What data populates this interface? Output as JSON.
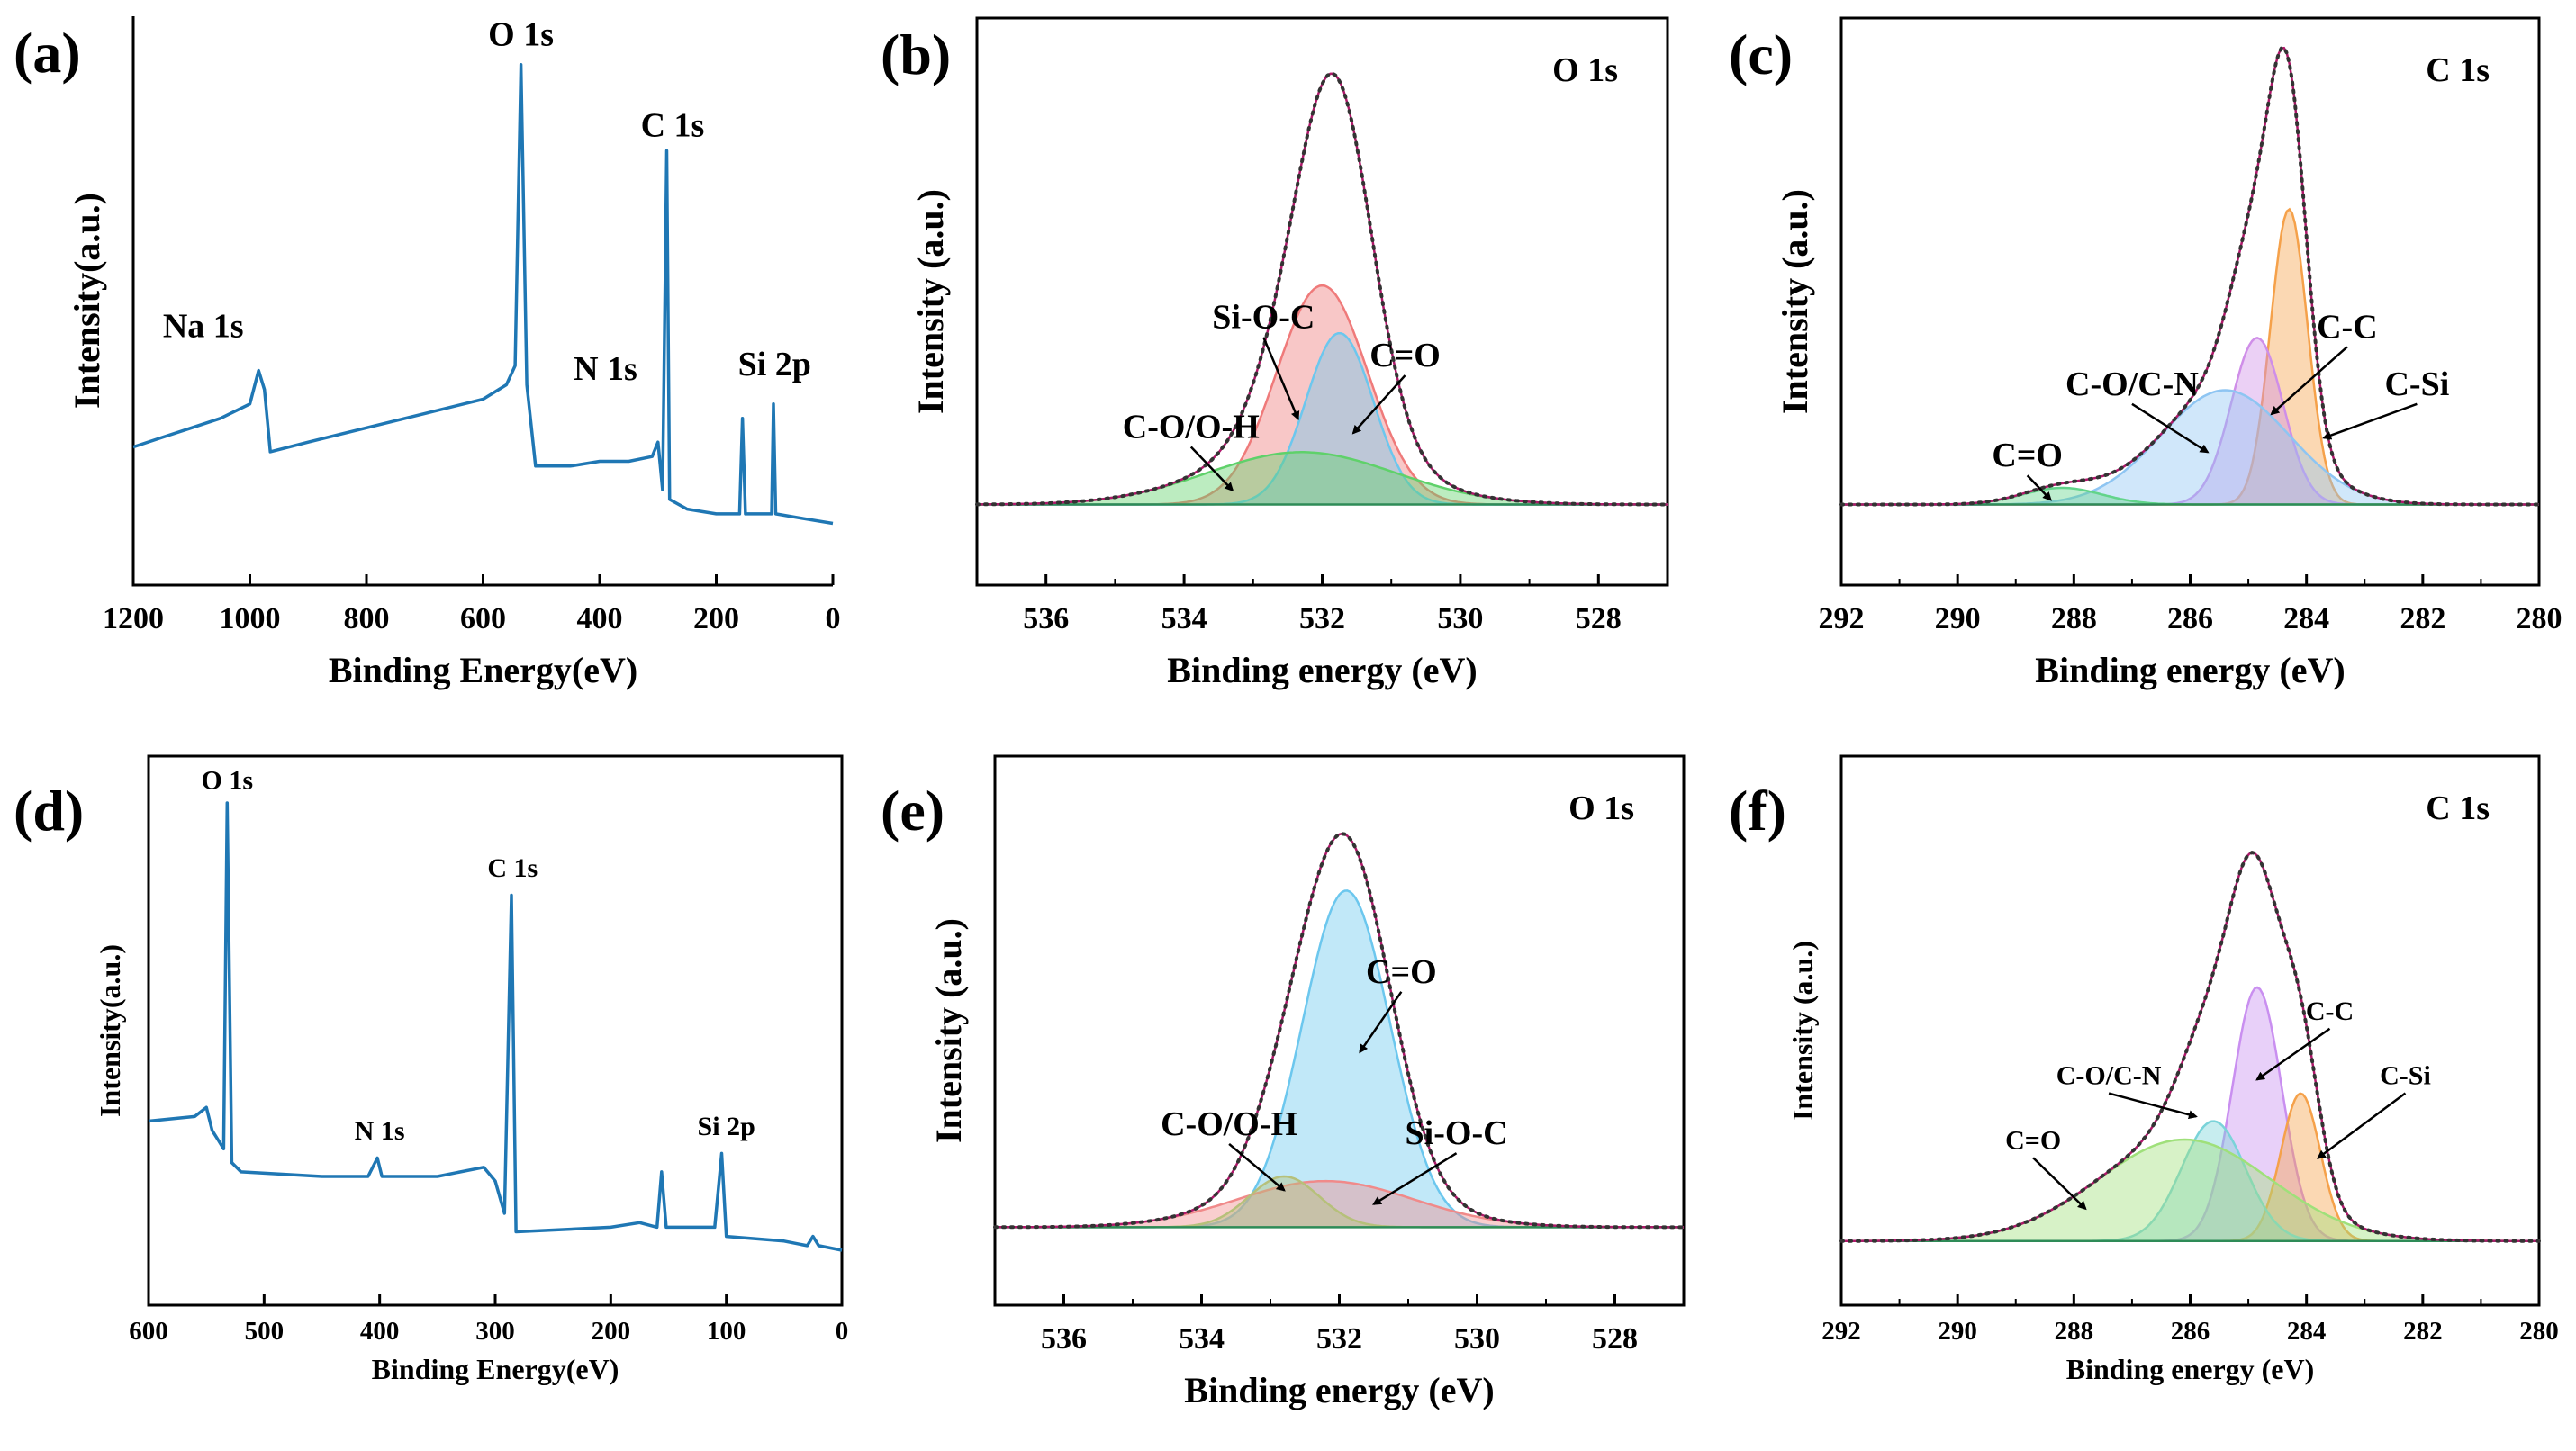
{
  "chart_data": [
    {
      "id": "a",
      "panel_label": "(a)",
      "type": "line",
      "xlabel": "Binding Energy(eV)",
      "ylabel": "Intensity(a.u.)",
      "xlim": [
        1200,
        0
      ],
      "ylim": [
        0,
        100
      ],
      "reversed_x": true,
      "xticks": [
        1200,
        1000,
        800,
        600,
        400,
        200,
        0
      ],
      "series": [
        {
          "name": "Survey spectrum",
          "color": "#1f77b4",
          "points": [
            [
              1200,
              17
            ],
            [
              1150,
              19
            ],
            [
              1100,
              21
            ],
            [
              1050,
              23
            ],
            [
              1000,
              26
            ],
            [
              985,
              33
            ],
            [
              975,
              29
            ],
            [
              965,
              16
            ],
            [
              900,
              18
            ],
            [
              800,
              21
            ],
            [
              700,
              24
            ],
            [
              600,
              27
            ],
            [
              560,
              30
            ],
            [
              545,
              34
            ],
            [
              535,
              97
            ],
            [
              525,
              30
            ],
            [
              510,
              13
            ],
            [
              450,
              13
            ],
            [
              400,
              14
            ],
            [
              350,
              14
            ],
            [
              310,
              15
            ],
            [
              300,
              18
            ],
            [
              292,
              8
            ],
            [
              285,
              79
            ],
            [
              280,
              6
            ],
            [
              250,
              4
            ],
            [
              200,
              3
            ],
            [
              160,
              3
            ],
            [
              155,
              23
            ],
            [
              150,
              3
            ],
            [
              105,
              3
            ],
            [
              102,
              26
            ],
            [
              98,
              3
            ],
            [
              50,
              2
            ],
            [
              0,
              1
            ]
          ]
        }
      ],
      "annotations": [
        {
          "text": "Na 1s",
          "x": 1080,
          "y": 40
        },
        {
          "text": "O 1s",
          "x": 535,
          "y": 101
        },
        {
          "text": "C 1s",
          "x": 275,
          "y": 82
        },
        {
          "text": "N 1s",
          "x": 390,
          "y": 31
        },
        {
          "text": "Si 2p",
          "x": 100,
          "y": 32
        }
      ]
    },
    {
      "id": "b",
      "panel_label": "(b)",
      "type": "area",
      "title": "O 1s",
      "xlabel": "Binding energy (eV)",
      "ylabel": "Intensity (a.u.)",
      "xlim": [
        537,
        527
      ],
      "ylim": [
        0,
        100
      ],
      "reversed_x": true,
      "xticks": [
        536,
        534,
        532,
        530,
        528
      ],
      "background": 5,
      "series": [
        {
          "name": "Si-O-C",
          "center": 532.0,
          "fwhm": 1.55,
          "amp": 46,
          "color": "#ef7a7a"
        },
        {
          "name": "C=O",
          "center": 531.75,
          "fwhm": 1.15,
          "amp": 36,
          "color": "#6cc7ee"
        },
        {
          "name": "C-O/O-H",
          "center": 532.3,
          "fwhm": 3.2,
          "amp": 11,
          "color": "#5fd16a"
        }
      ],
      "envelope": {
        "name": "Fitted envelope",
        "color": "#b0186b"
      },
      "annotations": [
        {
          "text": "Si-O-C",
          "x": 532.85,
          "y": 42,
          "arrow_to": [
            532.35,
            23
          ]
        },
        {
          "text": "C=O",
          "x": 530.8,
          "y": 34,
          "arrow_to": [
            531.55,
            20
          ]
        },
        {
          "text": "C-O/O-H",
          "x": 533.9,
          "y": 19,
          "arrow_to": [
            533.3,
            8
          ]
        }
      ]
    },
    {
      "id": "c",
      "panel_label": "(c)",
      "type": "area",
      "title": "C 1s",
      "xlabel": "Binding energy (eV)",
      "ylabel": "Intensity (a.u.)",
      "xlim": [
        292,
        280
      ],
      "ylim": [
        0,
        100
      ],
      "reversed_x": true,
      "xticks": [
        292,
        290,
        288,
        286,
        284,
        282,
        280
      ],
      "background": 5,
      "series": [
        {
          "name": "C-C",
          "center": 284.3,
          "fwhm": 0.75,
          "amp": 62,
          "color": "#f5a14a"
        },
        {
          "name": "C-Si",
          "center": 284.85,
          "fwhm": 1.05,
          "amp": 35,
          "color": "#cf8ee8"
        },
        {
          "name": "C-O/C-N",
          "center": 285.4,
          "fwhm": 2.6,
          "amp": 24,
          "color": "#8ec5f2"
        },
        {
          "name": "C=O",
          "center": 288.2,
          "fwhm": 1.6,
          "amp": 3.5,
          "color": "#62d48a"
        }
      ],
      "envelope": {
        "name": "Fitted envelope",
        "color": "#b0186b"
      },
      "annotations": [
        {
          "text": "C-C",
          "x": 283.3,
          "y": 40,
          "arrow_to": [
            284.6,
            24
          ]
        },
        {
          "text": "C-Si",
          "x": 282.1,
          "y": 28,
          "arrow_to": [
            283.7,
            19
          ]
        },
        {
          "text": "C-O/C-N",
          "x": 287.0,
          "y": 28,
          "arrow_to": [
            285.7,
            16
          ]
        },
        {
          "text": "C=O",
          "x": 288.8,
          "y": 13,
          "arrow_to": [
            288.4,
            6
          ]
        }
      ]
    },
    {
      "id": "d",
      "panel_label": "(d)",
      "type": "line",
      "xlabel": "Binding Energy(eV)",
      "ylabel": "Intensity(a.u.)",
      "xlim": [
        600,
        0
      ],
      "ylim": [
        0,
        100
      ],
      "reversed_x": true,
      "xticks": [
        600,
        500,
        400,
        300,
        200,
        100,
        0
      ],
      "series": [
        {
          "name": "Survey spectrum",
          "color": "#1f77b4",
          "points": [
            [
              600,
              28
            ],
            [
              560,
              29
            ],
            [
              550,
              31
            ],
            [
              545,
              26
            ],
            [
              540,
              24
            ],
            [
              535,
              22
            ],
            [
              532,
              97
            ],
            [
              528,
              19
            ],
            [
              520,
              17
            ],
            [
              450,
              16
            ],
            [
              410,
              16
            ],
            [
              402,
              20
            ],
            [
              398,
              16
            ],
            [
              350,
              16
            ],
            [
              310,
              18
            ],
            [
              300,
              15
            ],
            [
              292,
              8
            ],
            [
              286,
              77
            ],
            [
              282,
              4
            ],
            [
              200,
              5
            ],
            [
              175,
              6
            ],
            [
              160,
              5
            ],
            [
              156,
              17
            ],
            [
              152,
              5
            ],
            [
              110,
              5
            ],
            [
              104,
              21
            ],
            [
              100,
              3
            ],
            [
              50,
              2
            ],
            [
              30,
              1
            ],
            [
              25,
              3
            ],
            [
              20,
              1
            ],
            [
              0,
              0
            ]
          ]
        }
      ],
      "annotations": [
        {
          "text": "O 1s",
          "x": 532,
          "y": 100
        },
        {
          "text": "C 1s",
          "x": 285,
          "y": 81
        },
        {
          "text": "N 1s",
          "x": 400,
          "y": 24
        },
        {
          "text": "Si 2p",
          "x": 100,
          "y": 25
        }
      ]
    },
    {
      "id": "e",
      "panel_label": "(e)",
      "type": "area",
      "title": "O 1s",
      "xlabel": "Binding energy (eV)",
      "ylabel": "Intensity (a.u.)",
      "xlim": [
        537,
        527
      ],
      "ylim": [
        0,
        100
      ],
      "reversed_x": true,
      "xticks": [
        536,
        534,
        532,
        530,
        528
      ],
      "background": 5,
      "series": [
        {
          "name": "C=O",
          "center": 531.9,
          "fwhm": 1.5,
          "amp": 73,
          "color": "#6cc7ee"
        },
        {
          "name": "Si-O-C",
          "center": 532.2,
          "fwhm": 3.0,
          "amp": 10,
          "color": "#f08a8a"
        },
        {
          "name": "C-O/O-H",
          "center": 532.8,
          "fwhm": 1.2,
          "amp": 11,
          "color": "#b6c07a"
        }
      ],
      "envelope": {
        "name": "Fitted envelope",
        "color": "#b0186b"
      },
      "annotations": [
        {
          "text": "C=O",
          "x": 531.1,
          "y": 58,
          "arrow_to": [
            531.7,
            43
          ]
        },
        {
          "text": "C-O/O-H",
          "x": 533.6,
          "y": 25,
          "arrow_to": [
            532.8,
            13
          ]
        },
        {
          "text": "Si-O-C",
          "x": 530.3,
          "y": 23,
          "arrow_to": [
            531.5,
            10
          ]
        }
      ]
    },
    {
      "id": "f",
      "panel_label": "(f)",
      "type": "area",
      "title": "C 1s",
      "xlabel": "Binding energy (eV)",
      "ylabel": "Intensity (a.u.)",
      "xlim": [
        292,
        280
      ],
      "ylim": [
        0,
        100
      ],
      "reversed_x": true,
      "xticks": [
        292,
        290,
        288,
        286,
        284,
        282,
        280
      ],
      "background": 2,
      "series": [
        {
          "name": "C-Si",
          "center": 284.85,
          "fwhm": 1.0,
          "amp": 55,
          "color": "#c98ff0"
        },
        {
          "name": "C-C",
          "center": 284.1,
          "fwhm": 0.8,
          "amp": 32,
          "color": "#f5a14a"
        },
        {
          "name": "C-O/C-N",
          "center": 285.6,
          "fwhm": 1.3,
          "amp": 26,
          "color": "#7ad3d9"
        },
        {
          "name": "C=O",
          "center": 286.1,
          "fwhm": 3.5,
          "amp": 22,
          "color": "#9fe07a"
        }
      ],
      "envelope": {
        "name": "Fitted envelope",
        "color": "#b0186b"
      },
      "annotations": [
        {
          "text": "C-C",
          "x": 283.6,
          "y": 50,
          "arrow_to": [
            284.85,
            37
          ]
        },
        {
          "text": "C-Si",
          "x": 282.3,
          "y": 36,
          "arrow_to": [
            283.8,
            20
          ]
        },
        {
          "text": "C-O/C-N",
          "x": 287.4,
          "y": 36,
          "arrow_to": [
            285.9,
            29
          ]
        },
        {
          "text": "C=O",
          "x": 288.7,
          "y": 22,
          "arrow_to": [
            287.8,
            9
          ]
        }
      ]
    }
  ]
}
